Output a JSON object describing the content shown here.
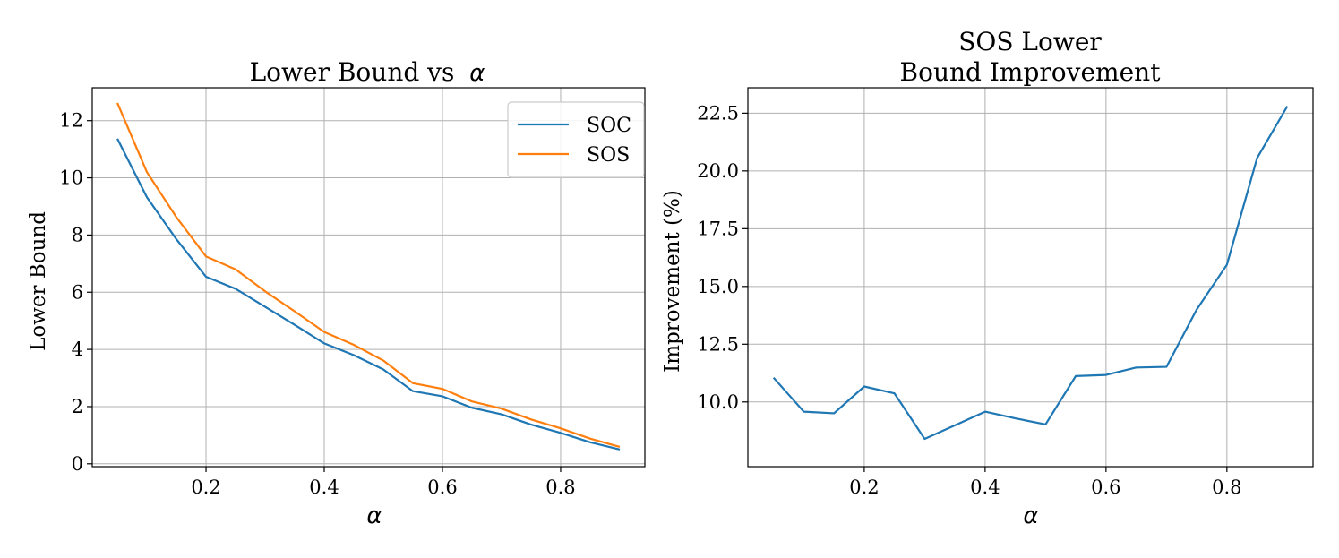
{
  "chart_data": [
    {
      "type": "line",
      "title": "Lower Bound vs",
      "title_symbol": "α",
      "xlabel": "α",
      "ylabel": "Lower Bound",
      "xlim": [
        0.0075,
        0.9425
      ],
      "ylim": [
        -0.1,
        13.15
      ],
      "xticks": [
        0.2,
        0.4,
        0.6,
        0.8
      ],
      "xtick_labels": [
        "0.2",
        "0.4",
        "0.6",
        "0.8"
      ],
      "yticks": [
        0,
        2,
        4,
        6,
        8,
        10,
        12
      ],
      "ytick_labels": [
        "0",
        "2",
        "4",
        "6",
        "8",
        "10",
        "12"
      ],
      "grid": true,
      "legend_position": "top-right",
      "x": [
        0.05,
        0.1,
        0.15,
        0.2,
        0.25,
        0.3,
        0.35,
        0.4,
        0.45,
        0.5,
        0.55,
        0.6,
        0.65,
        0.7,
        0.75,
        0.8,
        0.85,
        0.9
      ],
      "series": [
        {
          "name": "SOC",
          "color": "#1f77b4",
          "values": [
            11.37,
            9.32,
            7.85,
            6.54,
            6.12,
            5.49,
            4.86,
            4.21,
            3.8,
            3.3,
            2.54,
            2.36,
            1.96,
            1.73,
            1.37,
            1.08,
            0.75,
            0.5
          ]
        },
        {
          "name": "SOS",
          "color": "#ff7f0e",
          "values": [
            12.62,
            10.2,
            8.62,
            7.25,
            6.8,
            6.03,
            5.33,
            4.61,
            4.16,
            3.61,
            2.82,
            2.62,
            2.18,
            1.93,
            1.55,
            1.24,
            0.88,
            0.59
          ]
        }
      ]
    },
    {
      "type": "line",
      "title": "SOS Lower\nBound Improvement",
      "title_lines": [
        "SOS Lower",
        "Bound Improvement"
      ],
      "xlabel": "α",
      "ylabel": "Improvement (%)",
      "xlim": [
        0.0075,
        0.9425
      ],
      "ylim": [
        7.2,
        23.6
      ],
      "xticks": [
        0.2,
        0.4,
        0.6,
        0.8
      ],
      "xtick_labels": [
        "0.2",
        "0.4",
        "0.6",
        "0.8"
      ],
      "yticks": [
        10.0,
        12.5,
        15.0,
        17.5,
        20.0,
        22.5
      ],
      "ytick_labels": [
        "10.0",
        "12.5",
        "15.0",
        "17.5",
        "20.0",
        "22.5"
      ],
      "grid": true,
      "x": [
        0.05,
        0.1,
        0.15,
        0.2,
        0.25,
        0.3,
        0.35,
        0.4,
        0.45,
        0.5,
        0.55,
        0.6,
        0.65,
        0.7,
        0.75,
        0.8,
        0.85,
        0.9
      ],
      "series": [
        {
          "name": "",
          "color": "#1f77b4",
          "values": [
            11.05,
            9.58,
            9.51,
            10.67,
            10.37,
            8.4,
            8.99,
            9.58,
            9.29,
            9.03,
            11.12,
            11.17,
            11.49,
            11.52,
            14.0,
            15.94,
            20.56,
            22.8
          ]
        }
      ]
    }
  ]
}
